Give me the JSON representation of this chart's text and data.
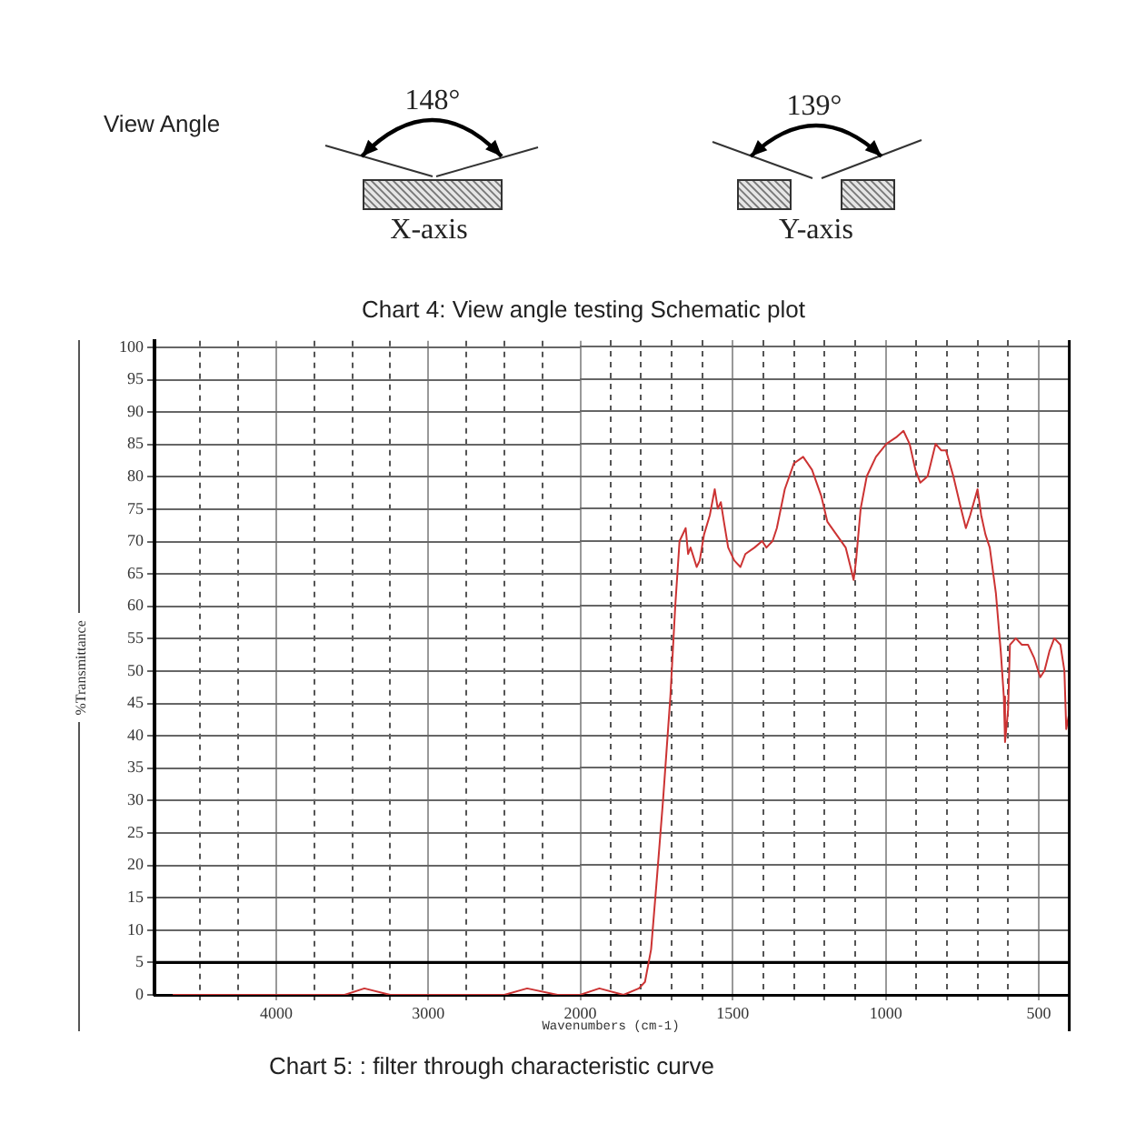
{
  "chart_data": [
    {
      "type": "line",
      "xlabel": "Wavenumbers (cm-1)",
      "ylabel": "%Transmittance",
      "annotations": [
        "View Angle",
        "148°",
        "X-axis",
        "139°",
        "Y-axis",
        "Chart 4: View angle testing Schematic plot",
        "Chart 5: : filter through characteristic curve"
      ],
      "x": [
        4680,
        4500,
        4250,
        4170,
        4000,
        3750,
        3550,
        3420,
        3250,
        3060,
        2850,
        2660,
        2500,
        2350,
        2150,
        2000
      ],
      "values": [
        0,
        0,
        0,
        0,
        0,
        0,
        0,
        1,
        0,
        0,
        0,
        0,
        0,
        1,
        0,
        0
      ],
      "color": "#cc3333",
      "marker": "none",
      "line_style": "solid",
      "xlim": [
        4800,
        2000
      ],
      "xticks": [
        {
          "value": 4500,
          "label": null
        },
        {
          "value": 4250,
          "label": null
        },
        4000,
        {
          "value": 3750,
          "label": null
        },
        {
          "value": 3500,
          "label": null
        },
        {
          "value": 3250,
          "label": null
        },
        3000,
        {
          "value": 2750,
          "label": null
        },
        {
          "value": 2500,
          "label": null
        },
        {
          "value": 2250,
          "label": null
        },
        2000
      ],
      "ylim": [
        0,
        101
      ],
      "yticks": [
        0,
        5,
        10,
        15,
        20,
        25,
        30,
        35,
        40,
        45,
        50,
        55,
        60,
        65,
        70,
        75,
        80,
        85,
        90,
        95,
        100
      ],
      "ref_lines": [
        {
          "axis": "y",
          "value": 5,
          "color": "#000000"
        }
      ],
      "grid": true
    },
    {
      "type": "line",
      "x": [
        2000,
        1936,
        1857,
        1807,
        1787,
        1767,
        1748,
        1728,
        1704,
        1688,
        1674,
        1654,
        1646,
        1638,
        1618,
        1608,
        1594,
        1575,
        1559,
        1549,
        1539,
        1529,
        1515,
        1495,
        1475,
        1459,
        1429,
        1404,
        1390,
        1370,
        1356,
        1330,
        1300,
        1270,
        1241,
        1211,
        1191,
        1161,
        1131,
        1115,
        1105,
        1097,
        1082,
        1062,
        1032,
        998,
        966,
        942,
        922,
        903,
        887,
        863,
        837,
        819,
        803,
        779,
        754,
        738,
        724,
        700,
        688,
        674,
        660,
        640,
        624,
        614,
        610,
        600,
        594,
        575,
        555,
        535,
        515,
        495,
        481,
        465,
        449,
        429,
        416,
        410,
        402
      ],
      "values": [
        0,
        1,
        0,
        1,
        2,
        7,
        18,
        30,
        46,
        60,
        70,
        72,
        68,
        69,
        66,
        67,
        71,
        74,
        78,
        75,
        76,
        73,
        69,
        67,
        66,
        68,
        69,
        70,
        69,
        70,
        72,
        78,
        82,
        83,
        81,
        77,
        73,
        71,
        69,
        66,
        64,
        67,
        75,
        80,
        83,
        85,
        86,
        87,
        85,
        81,
        79,
        80,
        85,
        84,
        84,
        80,
        75,
        72,
        74,
        78,
        74,
        71,
        69,
        62,
        53,
        46,
        39,
        44,
        54,
        55,
        54,
        54,
        52,
        49,
        50,
        53,
        55,
        54,
        50,
        41,
        43
      ],
      "color": "#cc3333",
      "marker": "none",
      "line_style": "solid",
      "xlim": [
        2000,
        400
      ],
      "xticks": [
        {
          "value": 1900,
          "label": null
        },
        {
          "value": 1800,
          "label": null
        },
        {
          "value": 1700,
          "label": null
        },
        {
          "value": 1600,
          "label": null
        },
        1500,
        {
          "value": 1400,
          "label": null
        },
        {
          "value": 1300,
          "label": null
        },
        {
          "value": 1200,
          "label": null
        },
        {
          "value": 1100,
          "label": null
        },
        1000,
        {
          "value": 900,
          "label": null
        },
        {
          "value": 800,
          "label": null
        },
        {
          "value": 700,
          "label": null
        },
        {
          "value": 600,
          "label": null
        },
        500
      ],
      "ylim": [
        0,
        101
      ],
      "yticks": [
        0,
        5,
        10,
        15,
        20,
        25,
        30,
        35,
        40,
        45,
        50,
        55,
        60,
        65,
        70,
        75,
        80,
        85,
        90,
        95,
        100
      ],
      "tick_labels": "x",
      "ref_lines": [
        {
          "axis": "y",
          "value": 5,
          "color": "#000000"
        }
      ],
      "grid": true
    }
  ]
}
